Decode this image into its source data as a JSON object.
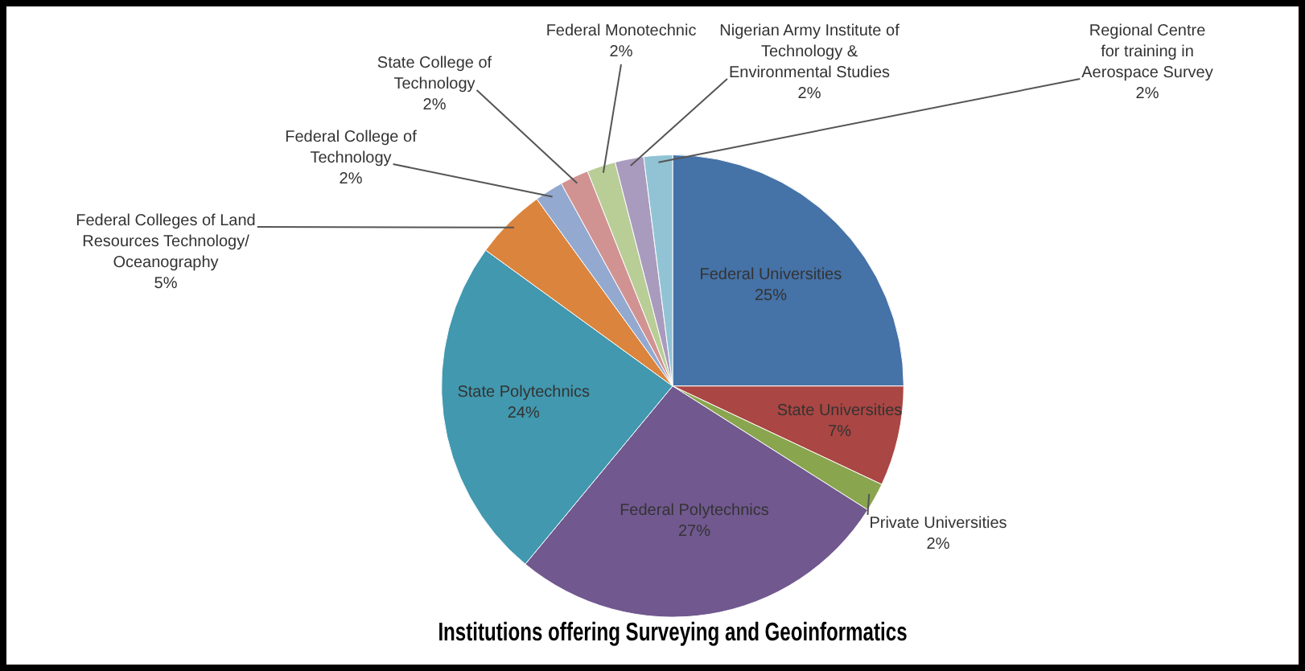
{
  "chart_data": {
    "type": "pie",
    "title": "Institutions offering Surveying and Geoinformatics",
    "categories": [
      "Federal Universities",
      "State Universities",
      "Private Universities",
      "Federal Polytechnics",
      "State Polytechnics",
      "Federal Colleges of Land Resources Technology/ Oceanography",
      "Federal College of Technology",
      "State College of Technology",
      "Federal Monotechnic",
      "Nigerian Army Institute of Technology & Environmental Studies",
      "Regional Centre for training in Aerospace Survey"
    ],
    "values": [
      25,
      7,
      2,
      27,
      24,
      5,
      2,
      2,
      2,
      2,
      2
    ],
    "value_labels": [
      "25%",
      "7%",
      "2%",
      "27%",
      "24%",
      "5%",
      "2%",
      "2%",
      "2%",
      "2%",
      "2%"
    ],
    "colors": [
      "#4572a7",
      "#aa4643",
      "#89a54e",
      "#71588f",
      "#4198af",
      "#db843d",
      "#93a9cf",
      "#d19392",
      "#b9cd96",
      "#a99bbd",
      "#92c3d4"
    ],
    "legend": false
  }
}
